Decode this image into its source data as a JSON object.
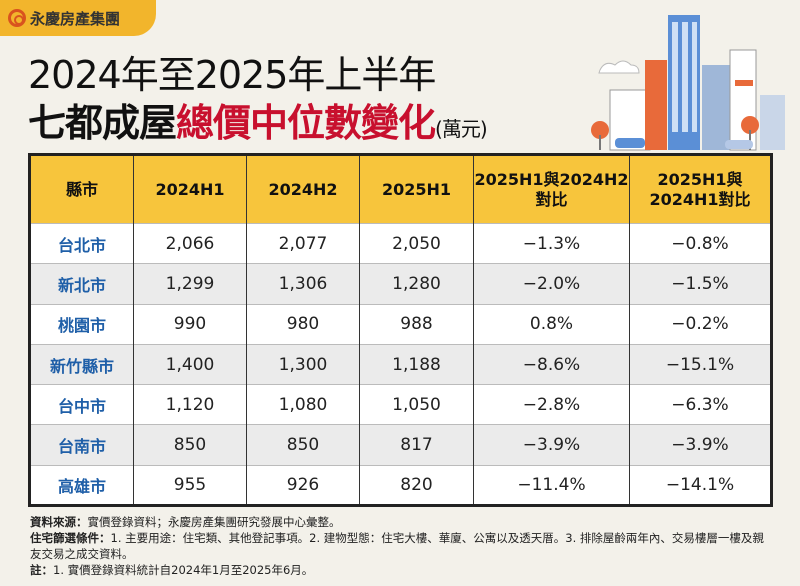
{
  "logo": {
    "text": "永慶房產集團",
    "color": "#f2b52c"
  },
  "title": {
    "line1": "2024年至2025年上半年",
    "line2_black": "七都成屋",
    "line2_red": "總價中位數變化",
    "unit": "(萬元)",
    "accent": "#c8102e"
  },
  "chart_data": {
    "type": "table",
    "columns": [
      "縣市",
      "2024H1",
      "2024H2",
      "2025H1",
      "2025H1與2024H2對比",
      "2025H1與2024H1對比"
    ],
    "rows": [
      [
        "台北市",
        "2,066",
        "2,077",
        "2,050",
        "−1.3%",
        "−0.8%"
      ],
      [
        "新北市",
        "1,299",
        "1,306",
        "1,280",
        "−2.0%",
        "−1.5%"
      ],
      [
        "桃園市",
        "990",
        "980",
        "988",
        "0.8%",
        "−0.2%"
      ],
      [
        "新竹縣市",
        "1,400",
        "1,300",
        "1,188",
        "−8.6%",
        "−15.1%"
      ],
      [
        "台中市",
        "1,120",
        "1,080",
        "1,050",
        "−2.8%",
        "−6.3%"
      ],
      [
        "台南市",
        "850",
        "850",
        "817",
        "−3.9%",
        "−3.9%"
      ],
      [
        "高雄市",
        "955",
        "926",
        "820",
        "−11.4%",
        "−14.1%"
      ]
    ],
    "header_color": "#f7c53c",
    "city_color": "#1f5fa8"
  },
  "footer": {
    "source_label": "資料來源：",
    "source": "實價登錄資料；永慶房產集團研究發展中心彙整。",
    "filter_label": "住宅篩選條件：",
    "filter": "1. 主要用途：住宅類、其他登記事項。2. 建物型態：住宅大樓、華廈、公寓以及透天厝。3. 排除屋齡兩年內、交易樓層一樓及親友交易之成交資料。",
    "note_label": "註：",
    "note": "1. 實價登錄資料統計自2024年1月至2025年6月。"
  }
}
